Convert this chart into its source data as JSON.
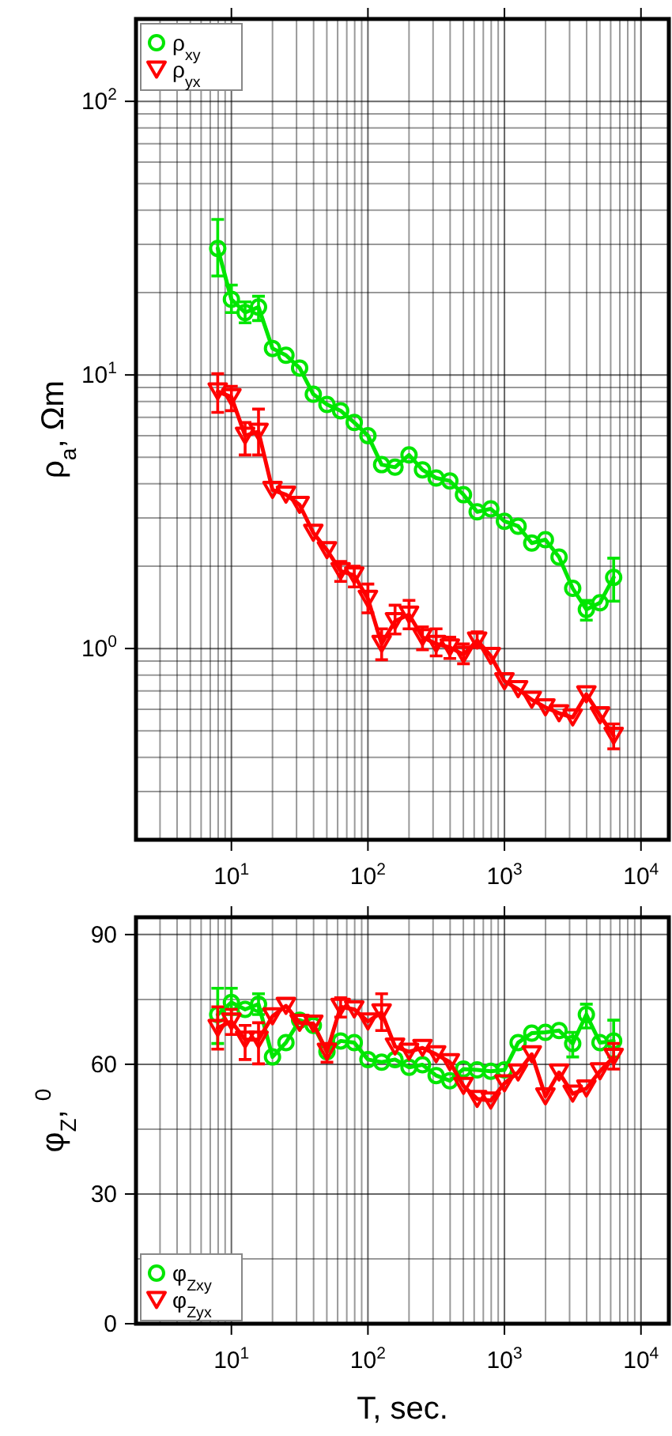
{
  "chart_data": [
    {
      "type": "line",
      "ylabel": "ρ$_{a}$, Ωm",
      "log": "xy",
      "grid": true,
      "legend": "top left",
      "xlim": [
        2,
        16000
      ],
      "ylim": [
        0.2,
        200
      ],
      "xticks": [
        {
          "value": 2,
          "label": null
        },
        {
          "value": 3,
          "label": null
        },
        {
          "value": 4,
          "label": null
        },
        {
          "value": 5,
          "label": null
        },
        {
          "value": 6,
          "label": null
        },
        {
          "value": 7,
          "label": null
        },
        {
          "value": 8,
          "label": null
        },
        {
          "value": 9,
          "label": null
        },
        {
          "value": 10,
          "label": "10$^{1}$"
        },
        {
          "value": 20,
          "label": null
        },
        {
          "value": 30,
          "label": null
        },
        {
          "value": 40,
          "label": null
        },
        {
          "value": 50,
          "label": null
        },
        {
          "value": 60,
          "label": null
        },
        {
          "value": 70,
          "label": null
        },
        {
          "value": 80,
          "label": null
        },
        {
          "value": 90,
          "label": null
        },
        {
          "value": 100,
          "label": "10$^{2}$"
        },
        {
          "value": 200,
          "label": null
        },
        {
          "value": 300,
          "label": null
        },
        {
          "value": 400,
          "label": null
        },
        {
          "value": 500,
          "label": null
        },
        {
          "value": 600,
          "label": null
        },
        {
          "value": 700,
          "label": null
        },
        {
          "value": 800,
          "label": null
        },
        {
          "value": 900,
          "label": null
        },
        {
          "value": 1000,
          "label": "10$^{3}$"
        },
        {
          "value": 2000,
          "label": null
        },
        {
          "value": 3000,
          "label": null
        },
        {
          "value": 4000,
          "label": null
        },
        {
          "value": 5000,
          "label": null
        },
        {
          "value": 6000,
          "label": null
        },
        {
          "value": 7000,
          "label": null
        },
        {
          "value": 8000,
          "label": null
        },
        {
          "value": 9000,
          "label": null
        },
        {
          "value": 10000,
          "label": "10$^{4}$"
        }
      ],
      "yticks": [
        {
          "value": 0.2,
          "label": null
        },
        {
          "value": 0.3,
          "label": null
        },
        {
          "value": 0.4,
          "label": null
        },
        {
          "value": 0.5,
          "label": null
        },
        {
          "value": 0.6,
          "label": null
        },
        {
          "value": 0.7,
          "label": null
        },
        {
          "value": 0.8,
          "label": null
        },
        {
          "value": 0.9,
          "label": null
        },
        {
          "value": 1,
          "label": "10$^{0}$"
        },
        {
          "value": 2,
          "label": null
        },
        {
          "value": 3,
          "label": null
        },
        {
          "value": 4,
          "label": null
        },
        {
          "value": 5,
          "label": null
        },
        {
          "value": 6,
          "label": null
        },
        {
          "value": 7,
          "label": null
        },
        {
          "value": 8,
          "label": null
        },
        {
          "value": 9,
          "label": null
        },
        {
          "value": 10,
          "label": "10$^{1}$"
        },
        {
          "value": 20,
          "label": null
        },
        {
          "value": 30,
          "label": null
        },
        {
          "value": 40,
          "label": null
        },
        {
          "value": 50,
          "label": null
        },
        {
          "value": 60,
          "label": null
        },
        {
          "value": 70,
          "label": null
        },
        {
          "value": 80,
          "label": null
        },
        {
          "value": 90,
          "label": null
        },
        {
          "value": 100,
          "label": "10$^{2}$"
        },
        {
          "value": 200,
          "label": null
        }
      ],
      "x": [
        7.94,
        10,
        12.6,
        15.8,
        20,
        25.1,
        31.6,
        39.8,
        50.1,
        63.1,
        79.4,
        100,
        126,
        158,
        200,
        251,
        316,
        398,
        501,
        631,
        794,
        1000,
        1259,
        1585,
        1995,
        2512,
        3162,
        3981,
        5012,
        6310
      ],
      "series": [
        {
          "name": "ρ$_{xy}$",
          "color": "#00e600",
          "marker": "circle",
          "values": [
            29,
            18.9,
            16.9,
            17.7,
            12.5,
            11.8,
            10.6,
            8.5,
            7.8,
            7.4,
            6.7,
            6.0,
            4.7,
            4.6,
            5.1,
            4.5,
            4.2,
            4.1,
            3.65,
            3.16,
            3.24,
            2.92,
            2.8,
            2.43,
            2.5,
            2.16,
            1.66,
            1.39,
            1.47,
            1.82
          ],
          "errors": [
            [
              23,
              37
            ],
            [
              16.9,
              21.3
            ],
            [
              15.5,
              18.5
            ],
            [
              15.8,
              19.4
            ],
            null,
            null,
            null,
            null,
            null,
            null,
            null,
            null,
            null,
            null,
            null,
            null,
            null,
            null,
            null,
            null,
            null,
            null,
            null,
            null,
            null,
            null,
            null,
            [
              1.27,
              1.5
            ],
            null,
            [
              1.49,
              2.14
            ]
          ]
        },
        {
          "name": "ρ$_{yx}$",
          "color": "#ff0000",
          "marker": "triangle",
          "values": [
            8.7,
            8.3,
            6.0,
            6.2,
            3.8,
            3.65,
            3.35,
            2.65,
            2.29,
            1.92,
            1.85,
            1.52,
            1.04,
            1.26,
            1.33,
            1.1,
            1.04,
            1.01,
            0.95,
            1.07,
            0.94,
            0.76,
            0.71,
            0.65,
            0.61,
            0.58,
            0.56,
            0.68,
            0.57,
            0.48
          ],
          "errors": [
            [
              7.3,
              10.1
            ],
            [
              7.4,
              9.08
            ],
            [
              5.1,
              6.7
            ],
            [
              5.1,
              7.5
            ],
            null,
            null,
            null,
            null,
            null,
            [
              1.76,
              2.08
            ],
            [
              1.68,
              2.0
            ],
            [
              1.35,
              1.72
            ],
            [
              0.91,
              1.18
            ],
            [
              1.13,
              1.44
            ],
            [
              1.18,
              1.5
            ],
            [
              0.99,
              1.2
            ],
            [
              0.94,
              1.18
            ],
            [
              0.92,
              1.1
            ],
            [
              0.88,
              1.04
            ],
            [
              1.01,
              1.15
            ],
            null,
            null,
            null,
            null,
            null,
            null,
            null,
            null,
            null,
            [
              0.43,
              0.53
            ]
          ]
        }
      ]
    },
    {
      "type": "line",
      "xlabel": "T, sec.",
      "ylabel": "φ$_{Z}$, $^{0}$",
      "log": "x",
      "grid": true,
      "legend": "bottom left",
      "xlim": [
        2,
        16000
      ],
      "ylim": [
        0,
        94
      ],
      "xticks": [
        {
          "value": 2,
          "label": null
        },
        {
          "value": 3,
          "label": null
        },
        {
          "value": 4,
          "label": null
        },
        {
          "value": 5,
          "label": null
        },
        {
          "value": 6,
          "label": null
        },
        {
          "value": 7,
          "label": null
        },
        {
          "value": 8,
          "label": null
        },
        {
          "value": 9,
          "label": null
        },
        {
          "value": 10,
          "label": "10$^{1}$"
        },
        {
          "value": 20,
          "label": null
        },
        {
          "value": 30,
          "label": null
        },
        {
          "value": 40,
          "label": null
        },
        {
          "value": 50,
          "label": null
        },
        {
          "value": 60,
          "label": null
        },
        {
          "value": 70,
          "label": null
        },
        {
          "value": 80,
          "label": null
        },
        {
          "value": 90,
          "label": null
        },
        {
          "value": 100,
          "label": "10$^{2}$"
        },
        {
          "value": 200,
          "label": null
        },
        {
          "value": 300,
          "label": null
        },
        {
          "value": 400,
          "label": null
        },
        {
          "value": 500,
          "label": null
        },
        {
          "value": 600,
          "label": null
        },
        {
          "value": 700,
          "label": null
        },
        {
          "value": 800,
          "label": null
        },
        {
          "value": 900,
          "label": null
        },
        {
          "value": 1000,
          "label": "10$^{3}$"
        },
        {
          "value": 2000,
          "label": null
        },
        {
          "value": 3000,
          "label": null
        },
        {
          "value": 4000,
          "label": null
        },
        {
          "value": 5000,
          "label": null
        },
        {
          "value": 6000,
          "label": null
        },
        {
          "value": 7000,
          "label": null
        },
        {
          "value": 8000,
          "label": null
        },
        {
          "value": 9000,
          "label": null
        },
        {
          "value": 10000,
          "label": "10$^{4}$"
        }
      ],
      "yticks": [
        0,
        {
          "value": 15,
          "label": null
        },
        30,
        {
          "value": 45,
          "label": null
        },
        60,
        {
          "value": 75,
          "label": null
        },
        90
      ],
      "x": [
        7.94,
        10,
        12.6,
        15.8,
        20,
        25.1,
        31.6,
        39.8,
        50.1,
        63.1,
        79.4,
        100,
        126,
        158,
        200,
        251,
        316,
        398,
        501,
        631,
        794,
        1000,
        1259,
        1585,
        1995,
        2512,
        3162,
        3981,
        5012,
        6310
      ],
      "series": [
        {
          "name": "φ$_{Zxy}$",
          "color": "#00e600",
          "marker": "circle",
          "values": [
            71.5,
            74.3,
            72.7,
            73.9,
            61.7,
            65.0,
            70.2,
            69.0,
            62.9,
            65.4,
            65.0,
            61.1,
            60.5,
            61.1,
            59.3,
            59.9,
            57.4,
            56.2,
            58.9,
            58.7,
            58.4,
            58.7,
            65.0,
            67.2,
            67.4,
            67.8,
            64.8,
            71.5,
            65.0,
            65.4
          ],
          "errors": [
            [
              64.8,
              77.6
            ],
            [
              71.5,
              77.6
            ],
            null,
            [
              71.5,
              76.3
            ],
            null,
            null,
            null,
            null,
            null,
            null,
            null,
            null,
            null,
            null,
            null,
            null,
            null,
            null,
            null,
            null,
            null,
            null,
            null,
            null,
            null,
            null,
            [
              61.7,
              67.4
            ],
            [
              68.4,
              73.9
            ],
            null,
            [
              61.7,
              70.2
            ]
          ]
        },
        {
          "name": "φ$_{Zyx}$",
          "color": "#ff0000",
          "marker": "triangle",
          "values": [
            68.4,
            69.9,
            65.7,
            65.7,
            71.1,
            73.5,
            69.6,
            69.4,
            62.9,
            73.3,
            72.7,
            69.9,
            72.0,
            64.1,
            62.9,
            63.8,
            62.3,
            60.5,
            55.0,
            52.0,
            51.6,
            55.6,
            58.1,
            62.3,
            52.6,
            58.1,
            53.2,
            54.4,
            58.4,
            61.7
          ],
          "errors": [
            [
              63.5,
              73.3
            ],
            [
              66.9,
              72.7
            ],
            [
              61.1,
              69.0
            ],
            [
              60.1,
              69.6
            ],
            null,
            null,
            null,
            null,
            [
              60.5,
              64.8
            ],
            [
              70.9,
              75.4
            ],
            null,
            null,
            [
              67.8,
              76.3
            ],
            null,
            null,
            null,
            null,
            null,
            null,
            null,
            null,
            null,
            null,
            null,
            null,
            null,
            null,
            null,
            null,
            [
              58.9,
              64.8
            ]
          ]
        }
      ]
    }
  ]
}
